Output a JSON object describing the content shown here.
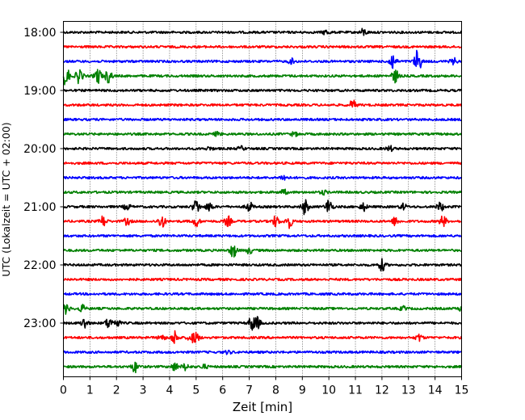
{
  "chart_data": {
    "type": "line",
    "title": "",
    "xlabel": "Zeit  [min]",
    "ylabel": "UTC (Lokalzeit = UTC + 02:00)",
    "xlim": [
      0,
      15
    ],
    "x_ticks": [
      "0",
      "1",
      "2",
      "3",
      "4",
      "5",
      "6",
      "7",
      "8",
      "9",
      "10",
      "11",
      "12",
      "13",
      "14",
      "15"
    ],
    "y_ticks": [
      "18:00",
      "19:00",
      "20:00",
      "21:00",
      "22:00",
      "23:00"
    ],
    "grid": "vertical dotted lines at each minute",
    "trace_interval_minutes": 15,
    "trace_color_cycle": [
      "#000000",
      "#ff0000",
      "#0000ff",
      "#008000"
    ],
    "traces": [
      {
        "start": "18:00",
        "color": "#000000",
        "events": [
          [
            9.9,
            0.5
          ],
          [
            11.3,
            0.7
          ]
        ]
      },
      {
        "start": "18:15",
        "color": "#ff0000",
        "events": []
      },
      {
        "start": "18:30",
        "color": "#0000ff",
        "events": [
          [
            8.6,
            0.5
          ],
          [
            12.4,
            1.7
          ],
          [
            13.35,
            2.5
          ],
          [
            14.7,
            0.6
          ]
        ]
      },
      {
        "start": "18:45",
        "color": "#008000",
        "events": [
          [
            0.1,
            2.0
          ],
          [
            0.6,
            1.6
          ],
          [
            1.3,
            1.7
          ],
          [
            1.7,
            1.4
          ],
          [
            12.5,
            1.3
          ]
        ]
      },
      {
        "start": "19:00",
        "color": "#000000",
        "events": []
      },
      {
        "start": "19:15",
        "color": "#ff0000",
        "events": [
          [
            10.9,
            0.9
          ]
        ]
      },
      {
        "start": "19:30",
        "color": "#0000ff",
        "events": []
      },
      {
        "start": "19:45",
        "color": "#008000",
        "events": [
          [
            5.8,
            0.4
          ],
          [
            8.7,
            0.4
          ]
        ]
      },
      {
        "start": "20:00",
        "color": "#000000",
        "events": [
          [
            5.5,
            0.3
          ],
          [
            6.7,
            0.4
          ],
          [
            12.3,
            0.5
          ]
        ]
      },
      {
        "start": "20:15",
        "color": "#ff0000",
        "events": []
      },
      {
        "start": "20:30",
        "color": "#0000ff",
        "events": [
          [
            8.3,
            0.6
          ]
        ]
      },
      {
        "start": "20:45",
        "color": "#008000",
        "events": [
          [
            8.3,
            0.5
          ],
          [
            9.8,
            0.4
          ]
        ]
      },
      {
        "start": "21:00",
        "color": "#000000",
        "events": [
          [
            2.4,
            0.6
          ],
          [
            5.0,
            1.5
          ],
          [
            5.5,
            0.9
          ],
          [
            7.0,
            1.0
          ],
          [
            9.1,
            1.5
          ],
          [
            10.0,
            1.6
          ],
          [
            11.3,
            0.8
          ],
          [
            12.8,
            0.6
          ],
          [
            14.2,
            0.9
          ]
        ]
      },
      {
        "start": "21:15",
        "color": "#ff0000",
        "events": [
          [
            1.5,
            1.1
          ],
          [
            2.4,
            0.7
          ],
          [
            3.7,
            1.4
          ],
          [
            5.0,
            1.0
          ],
          [
            6.2,
            1.0
          ],
          [
            8.0,
            1.1
          ],
          [
            8.5,
            1.3
          ],
          [
            12.5,
            0.8
          ],
          [
            14.3,
            1.1
          ]
        ]
      },
      {
        "start": "21:30",
        "color": "#0000ff",
        "events": []
      },
      {
        "start": "21:45",
        "color": "#008000",
        "events": [
          [
            6.4,
            1.4
          ],
          [
            7.0,
            0.6
          ]
        ]
      },
      {
        "start": "22:00",
        "color": "#000000",
        "events": [
          [
            12.0,
            1.2
          ]
        ]
      },
      {
        "start": "22:15",
        "color": "#ff0000",
        "events": []
      },
      {
        "start": "22:30",
        "color": "#0000ff",
        "events": []
      },
      {
        "start": "22:45",
        "color": "#008000",
        "events": [
          [
            0.1,
            1.0
          ],
          [
            0.7,
            0.7
          ],
          [
            12.8,
            0.4
          ],
          [
            15.0,
            0.6
          ]
        ]
      },
      {
        "start": "23:00",
        "color": "#000000",
        "events": [
          [
            0.8,
            1.1
          ],
          [
            1.7,
            1.0
          ],
          [
            2.0,
            0.8
          ],
          [
            7.1,
            1.4
          ],
          [
            7.3,
            1.1
          ]
        ]
      },
      {
        "start": "23:15",
        "color": "#ff0000",
        "events": [
          [
            3.7,
            0.6
          ],
          [
            4.2,
            1.4
          ],
          [
            4.8,
            0.8
          ],
          [
            5.0,
            1.0
          ],
          [
            13.4,
            0.7
          ]
        ]
      },
      {
        "start": "23:30",
        "color": "#0000ff",
        "events": [
          [
            6.2,
            0.3
          ]
        ]
      },
      {
        "start": "23:45",
        "color": "#008000",
        "events": [
          [
            2.7,
            1.1
          ],
          [
            4.2,
            0.8
          ],
          [
            4.6,
            0.7
          ],
          [
            5.3,
            0.4
          ]
        ]
      }
    ]
  }
}
